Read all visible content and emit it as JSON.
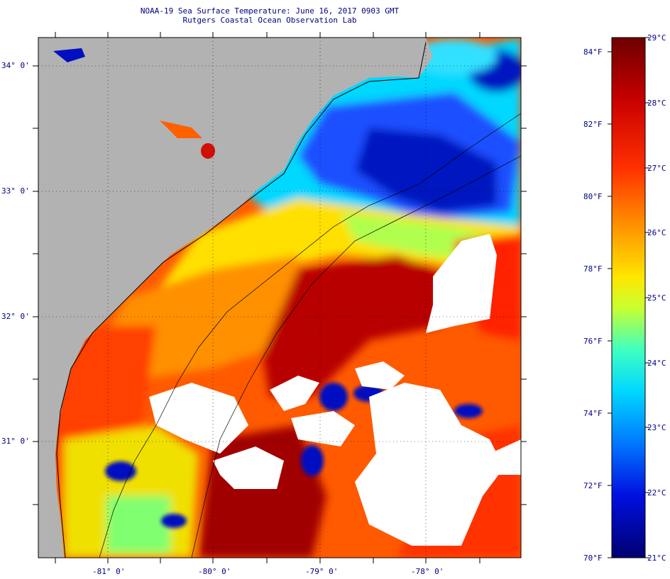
{
  "header": {
    "title": "NOAA-19 Sea Surface Temperature:  June 16, 2017 0903 GMT",
    "subtitle": "Rutgers Coastal Ocean Observation Lab"
  },
  "map": {
    "lat_labels": [
      "34° 0'",
      "33° 0'",
      "32° 0'",
      "31° 0'"
    ],
    "lon_labels": [
      "-81° 0'",
      "-80° 0'",
      "-79° 0'",
      "-78° 0'"
    ]
  },
  "colorbar": {
    "fahrenheit_labels": [
      "84°F",
      "82°F",
      "80°F",
      "78°F",
      "76°F",
      "74°F",
      "72°F",
      "70°F"
    ],
    "celsius_labels": [
      "29°C",
      "28°C",
      "27°C",
      "26°C",
      "25°C",
      "24°C",
      "23°C",
      "22°C",
      "21°C"
    ],
    "colors": [
      "#7a0000",
      "#c00000",
      "#ff1a00",
      "#ff7a00",
      "#ffd000",
      "#c8ff3c",
      "#3cffd0",
      "#00c8ff",
      "#0060ff",
      "#0000c8",
      "#000080"
    ]
  }
}
